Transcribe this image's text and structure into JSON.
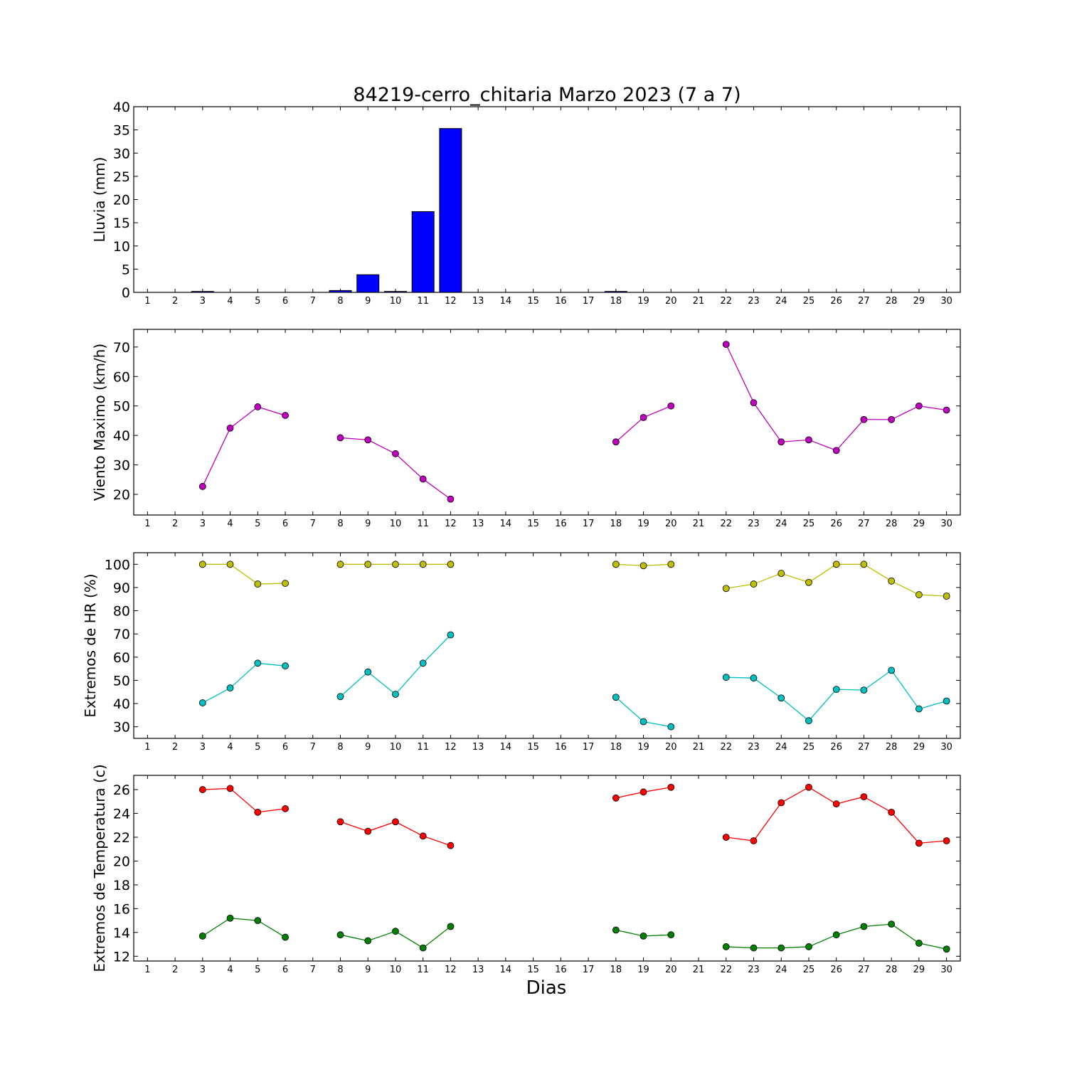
{
  "title": "84219-cerro_chitaria Marzo 2023  (7 a 7)",
  "xlabel": "Dias",
  "chart_data": [
    {
      "type": "bar",
      "ylabel": "Lluvia (mm)",
      "ylim": [
        0,
        40
      ],
      "yticks": [
        0,
        5,
        10,
        15,
        20,
        25,
        30,
        35,
        40
      ],
      "xlim": [
        0.5,
        30.5
      ],
      "x": [
        1,
        2,
        3,
        4,
        5,
        6,
        7,
        8,
        9,
        10,
        11,
        12,
        13,
        14,
        15,
        16,
        17,
        18,
        19,
        20,
        21,
        22,
        23,
        24,
        25,
        26,
        27,
        28,
        29,
        30
      ],
      "series": [
        {
          "color": "#0000ff",
          "values": [
            0,
            0,
            0.2,
            0,
            0,
            0,
            0,
            0.4,
            3.8,
            0.2,
            17.4,
            35.3,
            0,
            0,
            0,
            0,
            0,
            0.2,
            0,
            0,
            0,
            0,
            0,
            0,
            0,
            0,
            0,
            0,
            0,
            0
          ]
        }
      ],
      "grid": false
    },
    {
      "type": "line",
      "ylabel": "Viento Maximo (km/h)",
      "ylim": [
        13,
        76
      ],
      "yticks": [
        20,
        30,
        40,
        50,
        60,
        70
      ],
      "xlim": [
        0.5,
        30.5
      ],
      "x": [
        1,
        2,
        3,
        4,
        5,
        6,
        7,
        8,
        9,
        10,
        11,
        12,
        13,
        14,
        15,
        16,
        17,
        18,
        19,
        20,
        21,
        22,
        23,
        24,
        25,
        26,
        27,
        28,
        29,
        30
      ],
      "series": [
        {
          "color": "#bf00bf",
          "values": [
            null,
            null,
            22.7,
            42.5,
            49.7,
            46.8,
            null,
            39.2,
            38.5,
            33.8,
            25.2,
            18.4,
            null,
            null,
            null,
            null,
            null,
            37.8,
            46.1,
            50.0,
            null,
            70.9,
            51.1,
            37.8,
            38.5,
            34.9,
            45.4,
            45.4,
            50.0,
            48.6
          ]
        }
      ],
      "grid": false
    },
    {
      "type": "line",
      "ylabel": "Extremos de HR (%)",
      "ylim": [
        25,
        105
      ],
      "yticks": [
        30,
        40,
        50,
        60,
        70,
        80,
        90,
        100
      ],
      "xlim": [
        0.5,
        30.5
      ],
      "x": [
        1,
        2,
        3,
        4,
        5,
        6,
        7,
        8,
        9,
        10,
        11,
        12,
        13,
        14,
        15,
        16,
        17,
        18,
        19,
        20,
        21,
        22,
        23,
        24,
        25,
        26,
        27,
        28,
        29,
        30
      ],
      "series": [
        {
          "color": "#bfbf00",
          "values": [
            null,
            null,
            100,
            100,
            91.5,
            91.8,
            null,
            100,
            100,
            100,
            100,
            100,
            null,
            null,
            null,
            null,
            null,
            100,
            99.4,
            100,
            null,
            89.6,
            91.5,
            96.1,
            92.2,
            100,
            100,
            92.8,
            86.9,
            86.3
          ]
        },
        {
          "color": "#00bfbf",
          "values": [
            null,
            null,
            40.3,
            46.7,
            57.4,
            56.2,
            null,
            43.0,
            53.6,
            44.0,
            57.4,
            69.6,
            null,
            null,
            null,
            null,
            null,
            42.7,
            32.2,
            30.0,
            null,
            51.3,
            51.0,
            42.4,
            32.6,
            46.1,
            45.8,
            54.3,
            37.7,
            41.1
          ]
        }
      ],
      "grid": false
    },
    {
      "type": "line",
      "ylabel": "Extremos de Temperatura (c)",
      "ylim": [
        11.6,
        27.2
      ],
      "yticks": [
        12,
        14,
        16,
        18,
        20,
        22,
        24,
        26
      ],
      "xlim": [
        0.5,
        30.5
      ],
      "x": [
        1,
        2,
        3,
        4,
        5,
        6,
        7,
        8,
        9,
        10,
        11,
        12,
        13,
        14,
        15,
        16,
        17,
        18,
        19,
        20,
        21,
        22,
        23,
        24,
        25,
        26,
        27,
        28,
        29,
        30
      ],
      "series": [
        {
          "color": "#ff0000",
          "values": [
            null,
            null,
            26.0,
            26.1,
            24.1,
            24.4,
            null,
            23.3,
            22.5,
            23.3,
            22.1,
            21.3,
            null,
            null,
            null,
            null,
            null,
            25.3,
            25.8,
            26.2,
            null,
            22.0,
            21.7,
            24.9,
            26.2,
            24.8,
            25.4,
            24.1,
            21.5,
            21.7
          ]
        },
        {
          "color": "#008000",
          "values": [
            null,
            null,
            13.7,
            15.2,
            15.0,
            13.6,
            null,
            13.8,
            13.3,
            14.1,
            12.7,
            14.5,
            null,
            null,
            null,
            null,
            null,
            14.2,
            13.7,
            13.8,
            null,
            12.8,
            12.7,
            12.7,
            12.8,
            13.8,
            14.5,
            14.7,
            13.1,
            12.6
          ]
        }
      ],
      "grid": false
    }
  ]
}
